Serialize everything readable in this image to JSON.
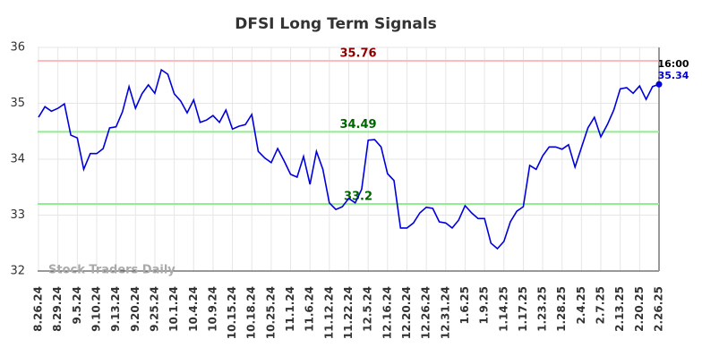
{
  "chart_data": {
    "type": "line",
    "title": "DFSI Long Term Signals",
    "watermark": "Stock Traders Daily",
    "categories": [
      "8.26.24",
      null,
      null,
      "8.29.24",
      null,
      null,
      "9.5.24",
      null,
      null,
      "9.10.24",
      null,
      null,
      "9.13.24",
      null,
      null,
      "9.20.24",
      null,
      null,
      "9.25.24",
      null,
      null,
      "10.1.24",
      null,
      null,
      "10.4.24",
      null,
      null,
      "10.9.24",
      null,
      null,
      "10.15.24",
      null,
      null,
      "10.18.24",
      null,
      null,
      "10.25.24",
      null,
      null,
      "11.1.24",
      null,
      null,
      "11.6.24",
      null,
      null,
      "11.12.24",
      null,
      null,
      "11.22.24",
      null,
      null,
      "12.5.24",
      null,
      null,
      "12.16.24",
      null,
      null,
      "12.20.24",
      null,
      null,
      "12.26.24",
      null,
      null,
      "12.31.24",
      null,
      null,
      "1.6.25",
      null,
      null,
      "1.9.25",
      null,
      null,
      "1.14.25",
      null,
      null,
      "1.17.25",
      null,
      null,
      "1.23.25",
      null,
      null,
      "1.28.25",
      null,
      null,
      "2.4.25",
      null,
      null,
      "2.7.25",
      null,
      null,
      "2.13.25",
      null,
      null,
      "2.20.25",
      null,
      null,
      "2.26.25"
    ],
    "values": [
      34.75,
      34.94,
      34.86,
      34.91,
      34.99,
      34.43,
      34.38,
      33.82,
      34.1,
      34.1,
      34.19,
      34.56,
      34.58,
      34.85,
      35.3,
      34.91,
      35.17,
      35.33,
      35.18,
      35.6,
      35.52,
      35.17,
      35.04,
      34.83,
      35.06,
      34.66,
      34.7,
      34.78,
      34.66,
      34.88,
      34.54,
      34.59,
      34.62,
      34.8,
      34.14,
      34.02,
      33.94,
      34.19,
      33.97,
      33.73,
      33.68,
      34.05,
      33.55,
      34.14,
      33.82,
      33.22,
      33.1,
      33.15,
      33.3,
      33.22,
      33.46,
      34.34,
      34.35,
      34.22,
      33.74,
      33.62,
      32.77,
      32.77,
      32.86,
      33.04,
      33.14,
      33.12,
      32.88,
      32.86,
      32.77,
      32.91,
      33.17,
      33.04,
      32.94,
      32.94,
      32.5,
      32.4,
      32.53,
      32.88,
      33.07,
      33.15,
      33.89,
      33.82,
      34.06,
      34.22,
      34.22,
      34.18,
      34.26,
      33.86,
      34.21,
      34.56,
      34.75,
      34.4,
      34.62,
      34.88,
      35.26,
      35.28,
      35.18,
      35.31,
      35.07,
      35.3,
      35.34
    ],
    "color": "#0000dd",
    "last_time": "16:00",
    "hlines": [
      {
        "value": 35.76,
        "color": "#ffbbbb",
        "label_color": "#8b0000"
      },
      {
        "value": 34.49,
        "color": "#90ee90",
        "label_color": "#006400"
      },
      {
        "value": 33.2,
        "color": "#90ee90",
        "label_color": "#006400"
      }
    ],
    "ylim": [
      32,
      36
    ],
    "yticks": [
      32,
      33,
      34,
      35,
      36
    ],
    "grid": true
  }
}
